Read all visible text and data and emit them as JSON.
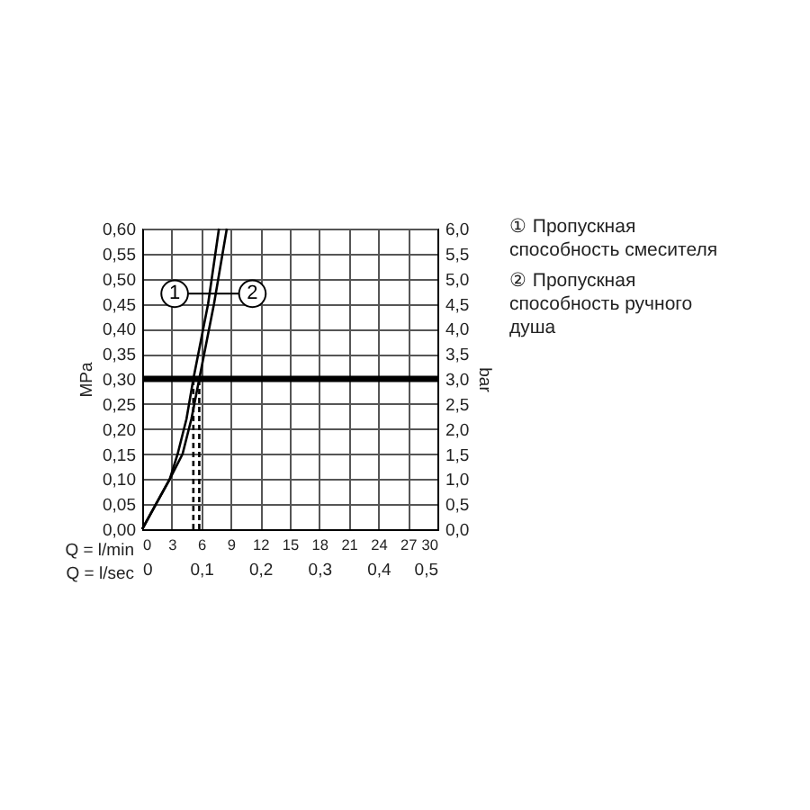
{
  "chart_data": {
    "type": "line",
    "xlabel": "Q = l/min",
    "ylabel": "MPa",
    "y2label": "bar",
    "x2label": "Q = l/sec",
    "xlim": [
      0,
      30
    ],
    "xticks": [
      0,
      3,
      6,
      9,
      12,
      15,
      18,
      21,
      24,
      27,
      30
    ],
    "ylim": [
      0,
      0.6
    ],
    "yticks": [
      {
        "value": 0,
        "label": "0,00"
      },
      {
        "value": 0.05,
        "label": "0,05"
      },
      {
        "value": 0.1,
        "label": "0,10"
      },
      {
        "value": 0.15,
        "label": "0,15"
      },
      {
        "value": 0.2,
        "label": "0,20"
      },
      {
        "value": 0.25,
        "label": "0,25"
      },
      {
        "value": 0.3,
        "label": "0,30"
      },
      {
        "value": 0.35,
        "label": "0,35"
      },
      {
        "value": 0.4,
        "label": "0,40"
      },
      {
        "value": 0.45,
        "label": "0,45"
      },
      {
        "value": 0.5,
        "label": "0,50"
      },
      {
        "value": 0.55,
        "label": "0,55"
      },
      {
        "value": 0.6,
        "label": "0,60"
      }
    ],
    "y2lim": [
      0,
      6
    ],
    "y2ticks": [
      {
        "value": 0,
        "label": "0,0"
      },
      {
        "value": 0.5,
        "label": "0,5"
      },
      {
        "value": 1,
        "label": "1,0"
      },
      {
        "value": 1.5,
        "label": "1,5"
      },
      {
        "value": 2,
        "label": "2,0"
      },
      {
        "value": 2.5,
        "label": "2,5"
      },
      {
        "value": 3,
        "label": "3,0"
      },
      {
        "value": 3.5,
        "label": "3,5"
      },
      {
        "value": 4,
        "label": "4,0"
      },
      {
        "value": 4.5,
        "label": "4,5"
      },
      {
        "value": 5,
        "label": "5,0"
      },
      {
        "value": 5.5,
        "label": "5,5"
      },
      {
        "value": 6,
        "label": "6,0"
      }
    ],
    "x2lim": [
      0,
      0.5
    ],
    "x2ticks": [
      0,
      {
        "value": 0.1,
        "label": "0,1"
      },
      {
        "value": 0.2,
        "label": "0,2"
      },
      {
        "value": 0.3,
        "label": "0,3"
      },
      {
        "value": 0.4,
        "label": "0,4"
      },
      {
        "value": 0.5,
        "label": "0,5"
      }
    ],
    "series": [
      {
        "color": "#000000",
        "x": [
          0,
          1.4,
          2.8,
          3.6,
          4.5,
          5.2,
          6.0,
          6.7,
          7.8
        ],
        "values": [
          0,
          0.05,
          0.1,
          0.15,
          0.22,
          0.3,
          0.38,
          0.45,
          0.6
        ]
      },
      {
        "color": "#000000",
        "x": [
          0,
          1.4,
          2.8,
          4.1,
          5.0,
          5.8,
          6.6,
          7.3,
          8.6
        ],
        "values": [
          0,
          0.05,
          0.1,
          0.15,
          0.22,
          0.3,
          0.38,
          0.45,
          0.6
        ]
      },
      {
        "color": "#000000",
        "line_style": "dashed",
        "x": [
          5.2,
          5.2
        ],
        "values": [
          0,
          0.3
        ]
      },
      {
        "color": "#000000",
        "line_style": "dashed",
        "x": [
          5.8,
          5.8
        ],
        "values": [
          0,
          0.3
        ]
      }
    ],
    "ref_lines": [
      {
        "axis": "y",
        "value": 0.3,
        "color": "#000000"
      }
    ],
    "annotations": [
      {
        "text": "1",
        "x": 3.3,
        "y": 0.47
      },
      {
        "text": "2",
        "x": 11.2,
        "y": 0.47
      },
      "① Пропускная способность смесителя",
      "② Пропускная способность ручного душа"
    ],
    "grid": true
  }
}
